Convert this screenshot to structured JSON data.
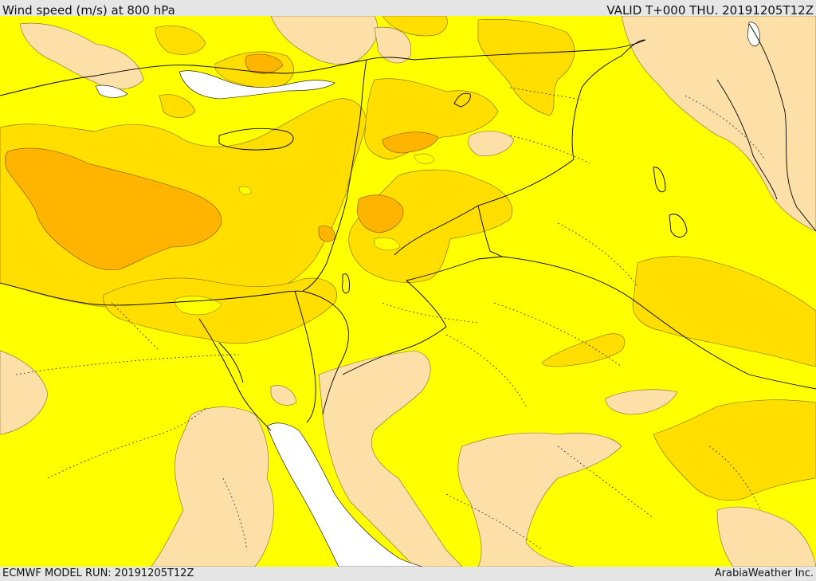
{
  "header": {
    "title": "Wind speed (m/s) at 800 hPa",
    "valid": "VALID T+000 THU. 20191205T12Z"
  },
  "footer": {
    "model_run": "ECMWF MODEL RUN: 20191205T12Z",
    "credit": "ArabiaWeather Inc."
  },
  "map": {
    "colors": {
      "calm": "#fde0a8",
      "light": "#ffff00",
      "moderate": "#ffde00",
      "fresh": "#ffb400",
      "strong": "#ff9a00",
      "water_gap": "#ffffff",
      "border": "#000000"
    }
  }
}
